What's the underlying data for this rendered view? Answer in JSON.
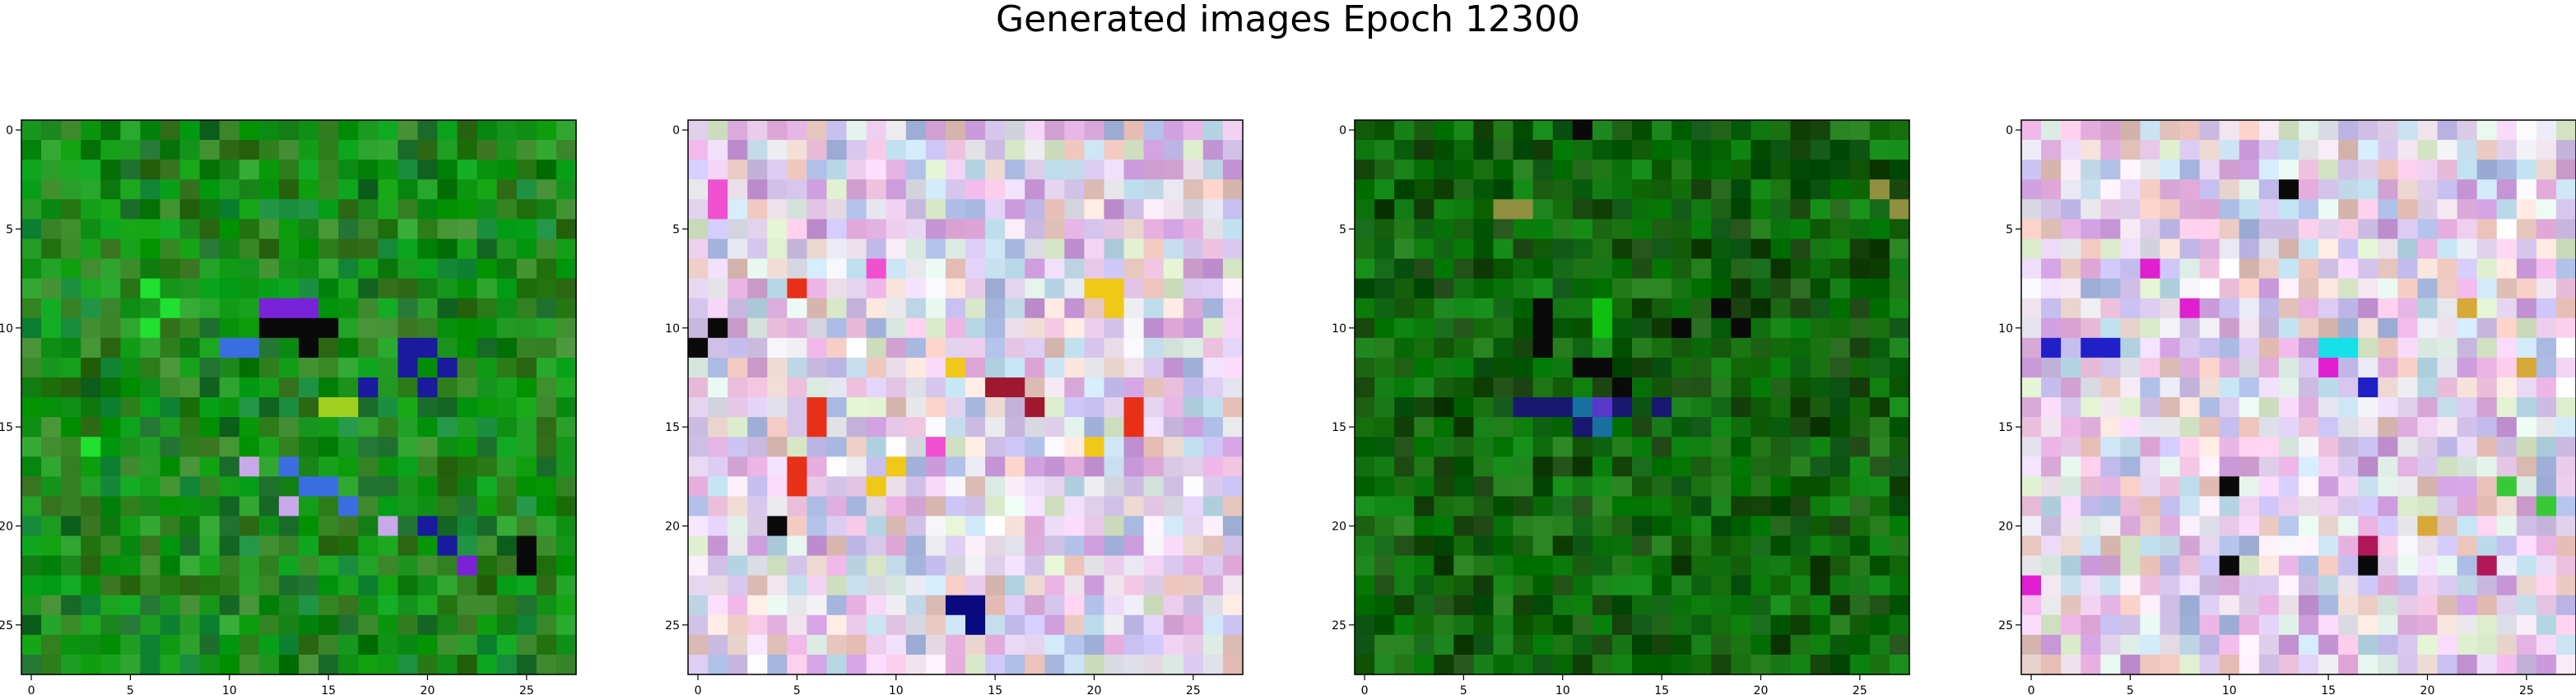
{
  "figure": {
    "title": "Generated images Epoch 12300"
  },
  "chart_data": [
    {
      "type": "heatmap",
      "name": "panel-1",
      "grid": [
        28,
        28
      ],
      "xlim": [
        -0.5,
        27.5
      ],
      "ylim": [
        27.5,
        -0.5
      ],
      "xticks": [
        0,
        5,
        10,
        15,
        20,
        25
      ],
      "yticks": [
        0,
        5,
        10,
        15,
        20,
        25
      ],
      "palette": "green",
      "features": [
        {
          "color": "#0a0a0a",
          "cells": [
            [
              10,
              12
            ],
            [
              10,
              13
            ],
            [
              10,
              14
            ],
            [
              10,
              15
            ],
            [
              11,
              14
            ],
            [
              21,
              25
            ],
            [
              22,
              25
            ]
          ]
        },
        {
          "color": "#1a1a9e",
          "cells": [
            [
              11,
              19
            ],
            [
              11,
              20
            ],
            [
              12,
              19
            ],
            [
              12,
              21
            ],
            [
              13,
              17
            ],
            [
              13,
              20
            ],
            [
              20,
              20
            ],
            [
              21,
              21
            ]
          ]
        },
        {
          "color": "#7a22d8",
          "cells": [
            [
              9,
              12
            ],
            [
              9,
              13
            ],
            [
              9,
              14
            ],
            [
              14,
              16
            ],
            [
              22,
              22
            ]
          ]
        },
        {
          "color": "#3a6ee0",
          "cells": [
            [
              11,
              10
            ],
            [
              11,
              11
            ],
            [
              17,
              13
            ],
            [
              18,
              14
            ],
            [
              18,
              15
            ],
            [
              19,
              16
            ]
          ]
        },
        {
          "color": "#20e030",
          "cells": [
            [
              8,
              6
            ],
            [
              9,
              7
            ],
            [
              10,
              6
            ],
            [
              16,
              3
            ]
          ]
        },
        {
          "color": "#a0d020",
          "cells": [
            [
              14,
              15
            ],
            [
              14,
              16
            ]
          ]
        },
        {
          "color": "#c8a8e8",
          "cells": [
            [
              17,
              11
            ],
            [
              19,
              13
            ],
            [
              20,
              18
            ]
          ]
        }
      ]
    },
    {
      "type": "heatmap",
      "name": "panel-2",
      "grid": [
        28,
        28
      ],
      "xlim": [
        -0.5,
        27.5
      ],
      "ylim": [
        27.5,
        -0.5
      ],
      "xticks": [
        0,
        5,
        10,
        15,
        20,
        25
      ],
      "yticks": [
        0,
        5,
        10,
        15,
        20,
        25
      ],
      "palette": "pastel",
      "features": [
        {
          "color": "#e83018",
          "cells": [
            [
              8,
              5
            ],
            [
              14,
              6
            ],
            [
              15,
              6
            ],
            [
              17,
              5
            ],
            [
              18,
              5
            ],
            [
              14,
              22
            ],
            [
              15,
              22
            ]
          ]
        },
        {
          "color": "#f0c818",
          "cells": [
            [
              8,
              20
            ],
            [
              8,
              21
            ],
            [
              9,
              21
            ],
            [
              16,
              20
            ],
            [
              18,
              9
            ],
            [
              17,
              10
            ],
            [
              12,
              13
            ]
          ]
        },
        {
          "color": "#0a0a0a",
          "cells": [
            [
              11,
              0
            ],
            [
              10,
              1
            ],
            [
              20,
              4
            ]
          ]
        },
        {
          "color": "#0a0a80",
          "cells": [
            [
              24,
              14
            ],
            [
              25,
              14
            ],
            [
              24,
              13
            ]
          ]
        },
        {
          "color": "#f050d0",
          "cells": [
            [
              7,
              9
            ],
            [
              3,
              1
            ],
            [
              4,
              1
            ],
            [
              16,
              12
            ]
          ]
        },
        {
          "color": "#a01830",
          "cells": [
            [
              13,
              15
            ],
            [
              13,
              16
            ],
            [
              14,
              17
            ]
          ]
        }
      ]
    },
    {
      "type": "heatmap",
      "name": "panel-3",
      "grid": [
        28,
        28
      ],
      "xlim": [
        -0.5,
        27.5
      ],
      "ylim": [
        27.5,
        -0.5
      ],
      "xticks": [
        0,
        5,
        10,
        15,
        20,
        25
      ],
      "yticks": [
        0,
        5,
        10,
        15,
        20,
        25
      ],
      "palette": "darkgreen",
      "features": [
        {
          "color": "#0a0a0a",
          "cells": [
            [
              0,
              11
            ],
            [
              9,
              9
            ],
            [
              10,
              9
            ],
            [
              10,
              16
            ],
            [
              11,
              9
            ],
            [
              12,
              11
            ],
            [
              12,
              12
            ],
            [
              13,
              13
            ],
            [
              9,
              18
            ],
            [
              10,
              19
            ]
          ]
        },
        {
          "color": "#181870",
          "cells": [
            [
              14,
              8
            ],
            [
              14,
              9
            ],
            [
              14,
              10
            ],
            [
              14,
              13
            ],
            [
              14,
              15
            ],
            [
              15,
              11
            ]
          ]
        },
        {
          "color": "#1870a0",
          "cells": [
            [
              14,
              11
            ],
            [
              15,
              12
            ]
          ]
        },
        {
          "color": "#5838c8",
          "cells": [
            [
              14,
              12
            ]
          ]
        },
        {
          "color": "#10c010",
          "cells": [
            [
              9,
              12
            ],
            [
              10,
              12
            ]
          ]
        },
        {
          "color": "#909040",
          "cells": [
            [
              4,
              7
            ],
            [
              4,
              8
            ],
            [
              3,
              26
            ],
            [
              4,
              27
            ]
          ]
        }
      ]
    },
    {
      "type": "heatmap",
      "name": "panel-4",
      "grid": [
        28,
        28
      ],
      "xlim": [
        -0.5,
        27.5
      ],
      "ylim": [
        27.5,
        -0.5
      ],
      "xticks": [
        0,
        5,
        10,
        15,
        20,
        25
      ],
      "yticks": [
        0,
        5,
        10,
        15,
        20,
        25
      ],
      "palette": "pastel",
      "features": [
        {
          "color": "#0a0a0a",
          "cells": [
            [
              3,
              13
            ],
            [
              18,
              10
            ],
            [
              22,
              10
            ],
            [
              22,
              17
            ]
          ]
        },
        {
          "color": "#2020c8",
          "cells": [
            [
              11,
              1
            ],
            [
              11,
              3
            ],
            [
              11,
              4
            ],
            [
              13,
              17
            ]
          ]
        },
        {
          "color": "#e020d0",
          "cells": [
            [
              7,
              6
            ],
            [
              9,
              8
            ],
            [
              12,
              15
            ],
            [
              23,
              0
            ]
          ]
        },
        {
          "color": "#18e0e8",
          "cells": [
            [
              11,
              15
            ],
            [
              11,
              16
            ]
          ]
        },
        {
          "color": "#d8a838",
          "cells": [
            [
              9,
              22
            ],
            [
              12,
              25
            ],
            [
              20,
              20
            ]
          ]
        },
        {
          "color": "#b01858",
          "cells": [
            [
              21,
              17
            ],
            [
              22,
              23
            ]
          ]
        },
        {
          "color": "#38c838",
          "cells": [
            [
              18,
              24
            ],
            [
              19,
              26
            ]
          ]
        }
      ]
    }
  ]
}
